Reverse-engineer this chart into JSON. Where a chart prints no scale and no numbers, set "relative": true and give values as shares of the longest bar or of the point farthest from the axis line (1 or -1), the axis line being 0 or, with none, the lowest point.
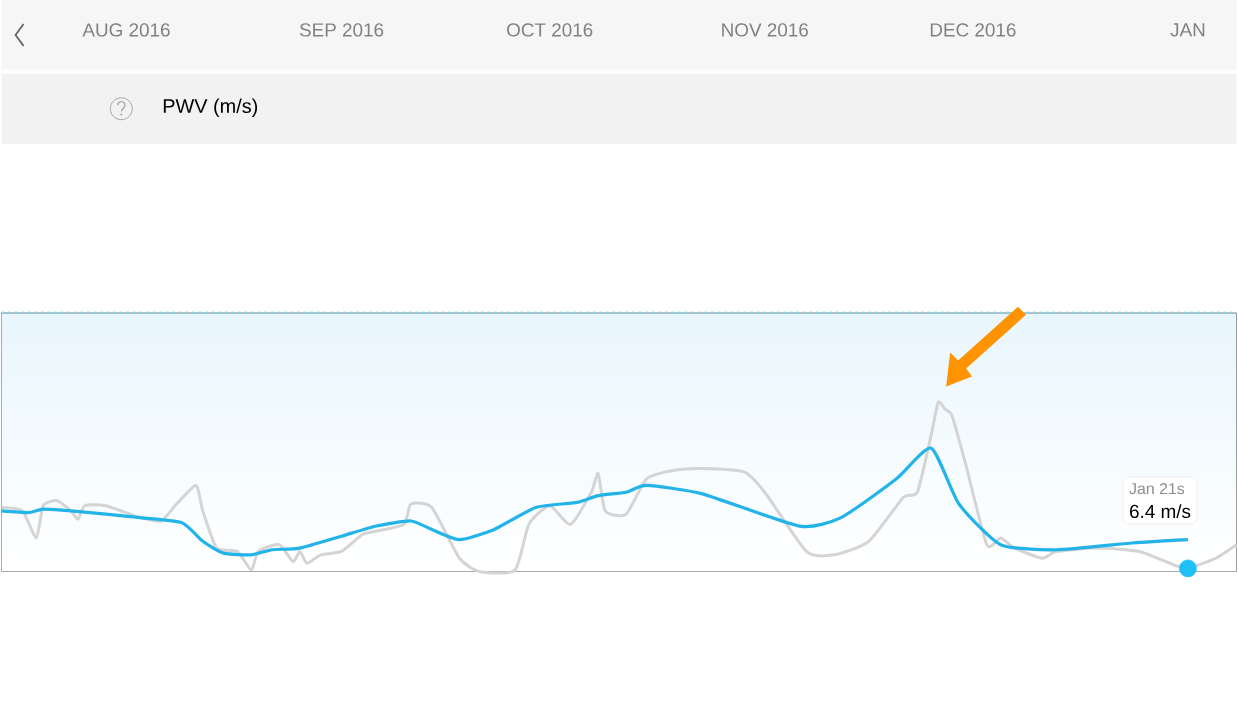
{
  "chart_data": {
    "type": "line",
    "title": "PWV (m/s)",
    "relative": true,
    "xlim": [
      "2016-07-28",
      "2017-01-22"
    ],
    "xticks": [
      {
        "value": "2016-08-15",
        "label": "AUG 2016"
      },
      {
        "value": "2016-09-15",
        "label": "SEP 2016"
      },
      {
        "value": "2016-10-15",
        "label": "OCT 2016"
      },
      {
        "value": "2016-11-15",
        "label": "NOV 2016"
      },
      {
        "value": "2016-12-15",
        "label": "DEC 2016"
      },
      {
        "value": "2017-01-15",
        "label": "JAN"
      }
    ],
    "marker": "none",
    "line_style": "solid",
    "series": [
      {
        "color": "#d4d4d4",
        "x": [
          "2016-07-28",
          "2016-07-31",
          "2016-08-02",
          "2016-08-03",
          "2016-08-05",
          "2016-08-07",
          "2016-08-08",
          "2016-08-09",
          "2016-08-12",
          "2016-08-17",
          "2016-08-20",
          "2016-08-22",
          "2016-08-25",
          "2016-08-26",
          "2016-08-28",
          "2016-08-31",
          "2016-09-02",
          "2016-09-03",
          "2016-09-06",
          "2016-09-08",
          "2016-09-09",
          "2016-09-10",
          "2016-09-12",
          "2016-09-15",
          "2016-09-18",
          "2016-09-20",
          "2016-09-24",
          "2016-09-25",
          "2016-09-28",
          "2016-10-02",
          "2016-10-05",
          "2016-10-10",
          "2016-10-12",
          "2016-10-15",
          "2016-10-18",
          "2016-10-21",
          "2016-10-22",
          "2016-10-23",
          "2016-10-26",
          "2016-10-29",
          "2016-11-02",
          "2016-11-06",
          "2016-11-12",
          "2016-11-15",
          "2016-11-21",
          "2016-11-25",
          "2016-11-30",
          "2016-12-05",
          "2016-12-07",
          "2016-12-09",
          "2016-12-10",
          "2016-12-11",
          "2016-12-12",
          "2016-12-14",
          "2016-12-17",
          "2016-12-19",
          "2016-12-21",
          "2016-12-25",
          "2016-12-27",
          "2017-01-02",
          "2017-01-08",
          "2017-01-13",
          "2017-01-15",
          "2017-01-19",
          "2017-01-22"
        ],
        "values": [
          0.38,
          0.36,
          0.2,
          0.39,
          0.42,
          0.36,
          0.31,
          0.39,
          0.39,
          0.32,
          0.3,
          0.39,
          0.51,
          0.36,
          0.14,
          0.12,
          0.01,
          0.12,
          0.16,
          0.06,
          0.12,
          0.05,
          0.1,
          0.12,
          0.22,
          0.24,
          0.28,
          0.4,
          0.38,
          0.08,
          0.0,
          0.01,
          0.28,
          0.39,
          0.28,
          0.47,
          0.58,
          0.36,
          0.34,
          0.55,
          0.6,
          0.61,
          0.59,
          0.47,
          0.12,
          0.1,
          0.18,
          0.44,
          0.47,
          0.81,
          1.0,
          0.96,
          0.92,
          0.63,
          0.16,
          0.2,
          0.14,
          0.08,
          0.12,
          0.14,
          0.12,
          0.04,
          0.02,
          0.08,
          0.16
        ]
      },
      {
        "color": "#22b4e8",
        "x": [
          "2016-07-28",
          "2016-08-01",
          "2016-08-03",
          "2016-08-07",
          "2016-08-17",
          "2016-08-23",
          "2016-08-26",
          "2016-08-29",
          "2016-09-02",
          "2016-09-05",
          "2016-09-09",
          "2016-09-15",
          "2016-09-20",
          "2016-09-25",
          "2016-09-28",
          "2016-10-02",
          "2016-10-07",
          "2016-10-13",
          "2016-10-19",
          "2016-10-22",
          "2016-10-26",
          "2016-10-29",
          "2016-11-06",
          "2016-11-20",
          "2016-11-26",
          "2016-12-04",
          "2016-12-09",
          "2016-12-13",
          "2016-12-19",
          "2016-12-27",
          "2017-01-07",
          "2017-01-15"
        ],
        "values": [
          0.36,
          0.35,
          0.37,
          0.36,
          0.32,
          0.29,
          0.18,
          0.11,
          0.1,
          0.13,
          0.14,
          0.21,
          0.27,
          0.3,
          0.25,
          0.19,
          0.25,
          0.38,
          0.41,
          0.45,
          0.47,
          0.51,
          0.46,
          0.27,
          0.32,
          0.55,
          0.73,
          0.4,
          0.16,
          0.13,
          0.17,
          0.19
        ]
      },
      {
        "type": "scatter",
        "marker": "circle",
        "color": "#1ec0f5",
        "x": [
          "2017-01-15"
        ],
        "values": [
          0.02
        ]
      }
    ],
    "ref_lines": [
      {
        "axis": "y",
        "value": 1.53,
        "color": "#7fd3ea",
        "line_style": "dotted"
      }
    ],
    "bands": [
      {
        "axis": "y",
        "from": 0,
        "to": 1.53,
        "color": "#e8f6fd"
      }
    ],
    "annotations": [
      "Jan 21s",
      "6.4 m/s"
    ]
  }
}
